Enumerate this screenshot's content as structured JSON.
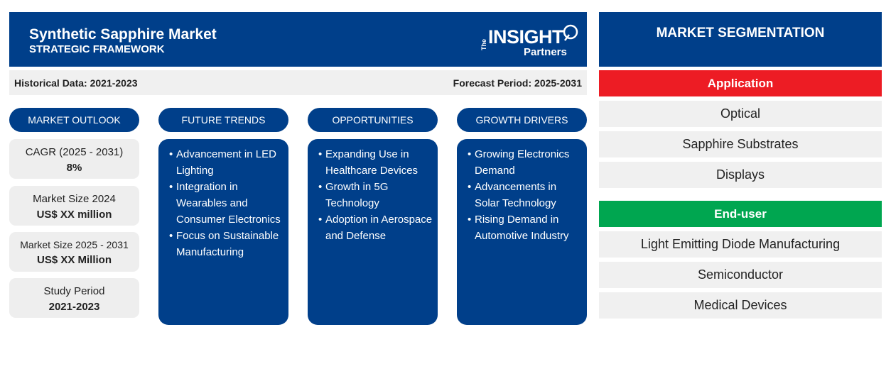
{
  "header": {
    "title": "Synthetic Sapphire Market",
    "subtitle": "STRATEGIC FRAMEWORK",
    "logo": {
      "the": "The",
      "insight": "INSIGHT",
      "partners": "Partners"
    }
  },
  "infobar": {
    "historical": "Historical Data: 2021-2023",
    "forecast": "Forecast Period: 2025-2031"
  },
  "sections": {
    "outlook": "MARKET OUTLOOK",
    "trends": "FUTURE TRENDS",
    "opportunities": "OPPORTUNITIES",
    "drivers": "GROWTH DRIVERS"
  },
  "outlook": [
    {
      "label": "CAGR (2025 - 2031)",
      "value": "8%"
    },
    {
      "label": "Market Size 2024",
      "value": "US$ XX million"
    },
    {
      "label": "Market Size 2025 - 2031",
      "value": "US$ XX Million"
    },
    {
      "label": "Study Period",
      "value": "2021-2023"
    }
  ],
  "trends": [
    "Advancement in LED Lighting",
    "Integration in Wearables and Consumer Electronics",
    "Focus on Sustainable Manufacturing"
  ],
  "opportunities": [
    "Expanding Use in Healthcare Devices",
    "Growth in 5G Technology",
    "Adoption in Aerospace and Defense"
  ],
  "drivers": [
    "Growing Electronics Demand",
    "Advancements in Solar Technology",
    "Rising Demand in Automotive Industry"
  ],
  "segmentation": {
    "title": "MARKET SEGMENTATION",
    "application_label": "Application",
    "application": [
      "Optical",
      "Sapphire Substrates",
      "Displays"
    ],
    "enduser_label": "End-user",
    "enduser": [
      "Light Emitting Diode Manufacturing",
      "Semiconductor",
      "Medical Devices"
    ]
  },
  "colors": {
    "primary": "#003f8a",
    "application": "#ed1c24",
    "enduser": "#00a650",
    "panel": "#f0f0f0"
  }
}
